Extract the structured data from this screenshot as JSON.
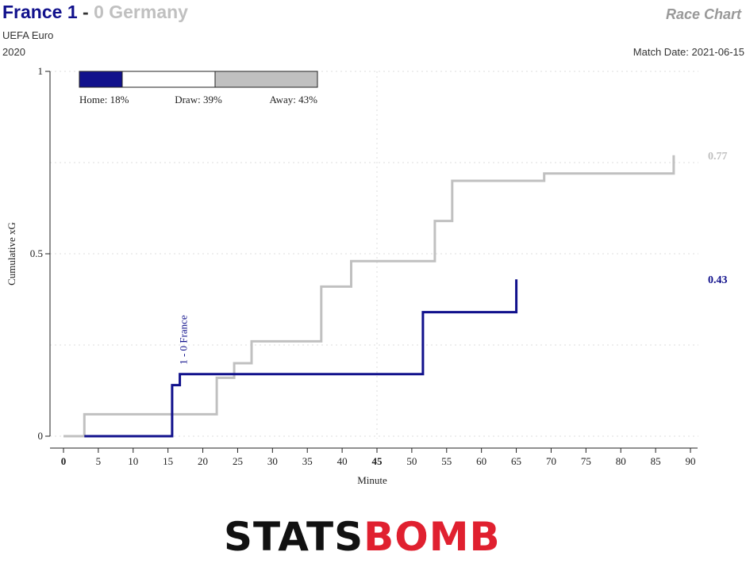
{
  "header": {
    "home_text": "France 1",
    "separator": " - ",
    "away_text": "0 Germany",
    "competition": "UEFA Euro",
    "season": "2020",
    "chart_label": "Race Chart",
    "match_date": "Match Date: 2021-06-15"
  },
  "colors": {
    "home": "#11118c",
    "away": "#c0c0c0",
    "draw": "#ffffff",
    "grid": "#dddddd"
  },
  "chart_data": {
    "type": "line",
    "xlabel": "Minute",
    "ylabel": "Cumulative xG",
    "xlim": [
      -1,
      91
    ],
    "ylim": [
      0,
      1
    ],
    "x_ticks": [
      0,
      5,
      10,
      15,
      20,
      25,
      30,
      35,
      40,
      45,
      50,
      55,
      60,
      65,
      70,
      75,
      80,
      85,
      90
    ],
    "y_ticks": [
      0,
      0.5,
      1
    ],
    "y_tick_labels": [
      "0",
      "0.5",
      "1"
    ],
    "grid": true,
    "series": [
      {
        "name": "France",
        "color": "#11118c",
        "final_label": "0.43",
        "points": [
          [
            3,
            0
          ],
          [
            15.6,
            0
          ],
          [
            15.6,
            0.14
          ],
          [
            16.7,
            0.14
          ],
          [
            16.7,
            0.17
          ],
          [
            51.6,
            0.17
          ],
          [
            51.6,
            0.34
          ],
          [
            65,
            0.34
          ],
          [
            65,
            0.43
          ]
        ]
      },
      {
        "name": "Germany",
        "color": "#c0c0c0",
        "final_label": "0.77",
        "points": [
          [
            0,
            0
          ],
          [
            3,
            0
          ],
          [
            3,
            0.06
          ],
          [
            22,
            0.06
          ],
          [
            22,
            0.16
          ],
          [
            24.5,
            0.16
          ],
          [
            24.5,
            0.2
          ],
          [
            27,
            0.2
          ],
          [
            27,
            0.26
          ],
          [
            37,
            0.26
          ],
          [
            37,
            0.41
          ],
          [
            41.3,
            0.41
          ],
          [
            41.3,
            0.48
          ],
          [
            53.3,
            0.48
          ],
          [
            53.3,
            0.59
          ],
          [
            55.8,
            0.59
          ],
          [
            55.8,
            0.7
          ],
          [
            69,
            0.7
          ],
          [
            69,
            0.72
          ],
          [
            87.6,
            0.72
          ],
          [
            87.6,
            0.77
          ]
        ]
      }
    ],
    "annotations": [
      {
        "text": "1 - 0 France",
        "x": 17.5,
        "y": 0.17
      }
    ],
    "probabilities": {
      "home_label": "Home: 18%",
      "draw_label": "Draw: 39%",
      "away_label": "Away: 43%",
      "home": 0.18,
      "draw": 0.39,
      "away": 0.43
    }
  },
  "logo": {
    "part1": "STATS",
    "part2": "BOMB"
  }
}
